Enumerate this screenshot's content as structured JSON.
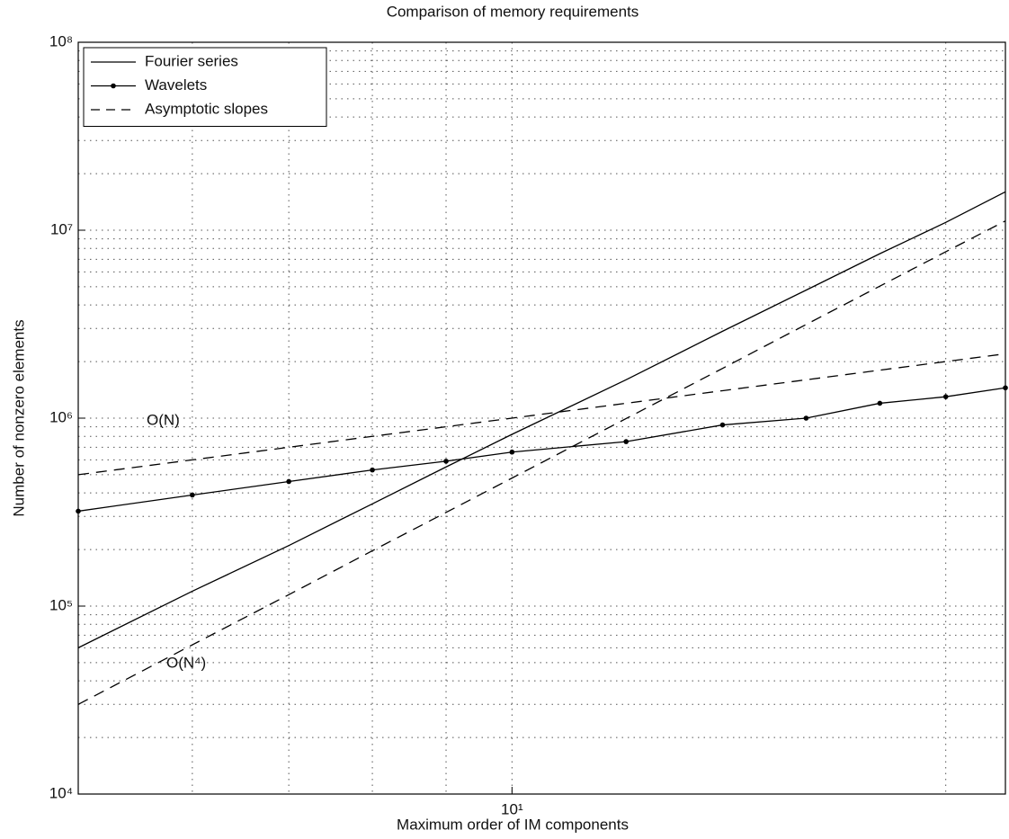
{
  "chart_data": {
    "type": "line",
    "title": "Comparison of memory requirements",
    "xlabel": "Maximum order of IM components",
    "ylabel": "Number of nonzero elements",
    "xscale": "log",
    "yscale": "log",
    "grid": true,
    "legend": "upper left",
    "xlim": [
      5,
      22
    ],
    "ylim": [
      10000,
      100000000
    ],
    "xticks": [
      {
        "value": 10,
        "label": "10¹"
      }
    ],
    "xminor": [
      6,
      7,
      8,
      9,
      20
    ],
    "yticks": [
      {
        "value": 10000,
        "label": "10⁴"
      },
      {
        "value": 100000,
        "label": "10⁵"
      },
      {
        "value": 1000000,
        "label": "10⁶"
      },
      {
        "value": 10000000,
        "label": "10⁷"
      },
      {
        "value": 100000000,
        "label": "10⁸"
      }
    ],
    "yminor": [
      20000,
      30000,
      40000,
      50000,
      60000,
      70000,
      80000,
      90000,
      200000,
      300000,
      400000,
      500000,
      600000,
      700000,
      800000,
      900000,
      2000000,
      3000000,
      4000000,
      5000000,
      6000000,
      7000000,
      8000000,
      9000000,
      20000000,
      30000000,
      40000000,
      50000000,
      60000000,
      70000000,
      80000000,
      90000000
    ],
    "x": [
      5,
      6,
      7,
      8,
      9,
      10,
      12,
      14,
      16,
      18,
      20,
      22
    ],
    "series": [
      {
        "name": "Fourier series",
        "color": "#000000",
        "style": "solid",
        "values": [
          60000,
          120000,
          210000,
          350000,
          550000,
          820000,
          1600000,
          2900000,
          4800000,
          7500000,
          11000000,
          16000000
        ]
      },
      {
        "name": "Wavelets",
        "color": "#000000",
        "style": "solid-dot",
        "values": [
          320000,
          390000,
          460000,
          530000,
          590000,
          660000,
          750000,
          920000,
          1000000,
          1200000,
          1300000,
          1450000
        ]
      },
      {
        "name": "Asymptotic slopes",
        "color": "#000000",
        "style": "dashed",
        "values": [
          500000,
          600000,
          700000,
          800000,
          900000,
          1000000,
          1200000,
          1400000,
          1600000,
          1800000,
          2000000,
          2200000
        ]
      },
      {
        "color": "#000000",
        "style": "dashed",
        "values": [
          30000,
          62200,
          115000,
          197000,
          315000,
          480000,
          995000,
          1840000,
          3150000,
          5040000,
          7680000,
          11200000
        ]
      }
    ],
    "annotations": [
      {
        "text": "O(N)"
      },
      {
        "text": "O(N⁴)"
      }
    ]
  }
}
